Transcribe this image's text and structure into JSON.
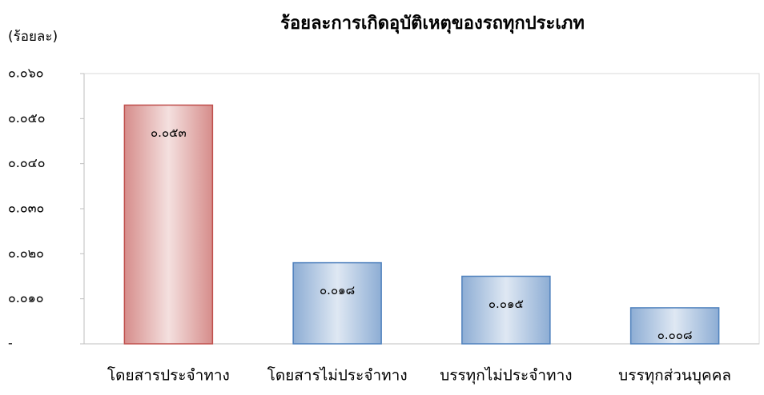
{
  "chart_data": {
    "type": "bar",
    "title": "ร้อยละการเกิดอุบัติเหตุของรถทุกประเภท",
    "y_label": "(ร้อยละ)",
    "categories": [
      "โดยสารประจำทาง",
      "โดยสารไม่ประจำทาง",
      "บรรทุกไม่ประจำทาง",
      "บรรทุกส่วนบุคคล"
    ],
    "values": [
      0.053,
      0.018,
      0.015,
      0.008
    ],
    "value_labels": [
      "๐.๐๕๓",
      "๐.๐๑๘",
      "๐.๐๑๕",
      "๐.๐๐๘"
    ],
    "colors": [
      "#c0504d",
      "#4f81bd",
      "#4f81bd",
      "#4f81bd"
    ],
    "ylim": [
      0,
      0.06
    ],
    "yticks": [
      {
        "value": 0,
        "label": "-"
      },
      {
        "value": 0.01,
        "label": "๐.๐๑๐"
      },
      {
        "value": 0.02,
        "label": "๐.๐๒๐"
      },
      {
        "value": 0.03,
        "label": "๐.๐๓๐"
      },
      {
        "value": 0.04,
        "label": "๐.๐๔๐"
      },
      {
        "value": 0.05,
        "label": "๐.๐๕๐"
      },
      {
        "value": 0.06,
        "label": "๐.๐๖๐"
      }
    ],
    "grid": false
  }
}
